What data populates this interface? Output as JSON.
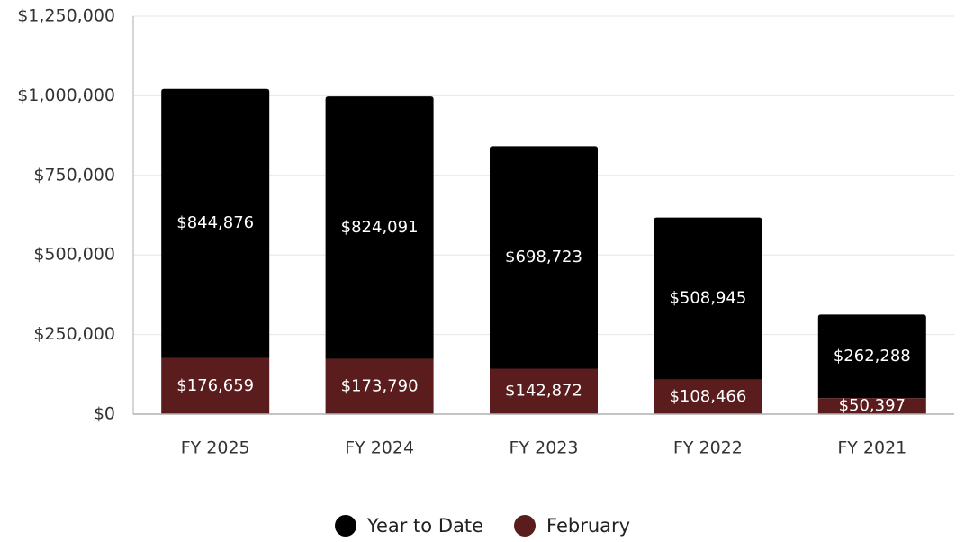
{
  "chart_data": {
    "type": "bar",
    "stacked": true,
    "categories": [
      "FY 2025",
      "FY 2024",
      "FY 2023",
      "FY 2022",
      "FY 2021"
    ],
    "series": [
      {
        "name": "February",
        "color": "#5a1c1c",
        "values": [
          176659,
          173790,
          142872,
          108466,
          50397
        ],
        "labels": [
          "$176,659",
          "$173,790",
          "$142,872",
          "$108,466",
          "$50,397"
        ]
      },
      {
        "name": "Year to Date",
        "color": "#000000",
        "values": [
          844876,
          824091,
          698723,
          508945,
          262288
        ],
        "labels": [
          "$844,876",
          "$824,091",
          "$698,723",
          "$508,945",
          "$262,288"
        ]
      }
    ],
    "ylim": [
      0,
      1250000
    ],
    "yticks": [
      0,
      250000,
      500000,
      750000,
      1000000,
      1250000
    ],
    "ytick_labels": [
      "$0",
      "$250,000",
      "$500,000",
      "$750,000",
      "$1,000,000",
      "$1,250,000"
    ],
    "grid": true,
    "legend_position": "bottom-center",
    "title": "",
    "xlabel": "",
    "ylabel": ""
  },
  "legend": {
    "items": [
      {
        "label": "Year to Date",
        "color": "#000000"
      },
      {
        "label": "February",
        "color": "#5a1c1c"
      }
    ]
  }
}
